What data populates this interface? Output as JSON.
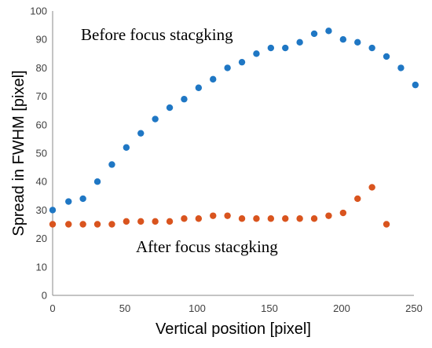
{
  "chart_data": {
    "type": "scatter",
    "xlabel": "Vertical position [pixel]",
    "ylabel": "Spread in FWHM [pixel]",
    "xlim": [
      0,
      250
    ],
    "ylim": [
      0,
      100
    ],
    "xticks": [
      "0",
      "50",
      "100",
      "150",
      "200",
      "250"
    ],
    "yticks": [
      "0",
      "10",
      "20",
      "30",
      "40",
      "50",
      "60",
      "70",
      "80",
      "90",
      "100"
    ],
    "grid": false,
    "annotations": [
      {
        "text": "Before focus stacgking"
      },
      {
        "text": "After focus stacgking"
      }
    ],
    "series": [
      {
        "color": "#1f77c4",
        "points": [
          [
            0,
            30
          ],
          [
            11,
            33
          ],
          [
            21,
            34
          ],
          [
            31,
            40
          ],
          [
            41,
            46
          ],
          [
            51,
            52
          ],
          [
            61,
            57
          ],
          [
            71,
            62
          ],
          [
            81,
            66
          ],
          [
            91,
            69
          ],
          [
            101,
            73
          ],
          [
            111,
            76
          ],
          [
            121,
            80
          ],
          [
            131,
            82
          ],
          [
            141,
            85
          ],
          [
            151,
            87
          ],
          [
            161,
            87
          ],
          [
            171,
            89
          ],
          [
            181,
            92
          ],
          [
            191,
            93
          ],
          [
            201,
            90
          ],
          [
            211,
            89
          ],
          [
            221,
            87
          ],
          [
            231,
            84
          ],
          [
            241,
            80
          ],
          [
            251,
            74
          ]
        ]
      },
      {
        "color": "#d9541e",
        "points": [
          [
            0,
            25
          ],
          [
            11,
            25
          ],
          [
            21,
            25
          ],
          [
            31,
            25
          ],
          [
            41,
            25
          ],
          [
            51,
            26
          ],
          [
            61,
            26
          ],
          [
            71,
            26
          ],
          [
            81,
            26
          ],
          [
            91,
            27
          ],
          [
            101,
            27
          ],
          [
            111,
            28
          ],
          [
            121,
            28
          ],
          [
            131,
            27
          ],
          [
            141,
            27
          ],
          [
            151,
            27
          ],
          [
            161,
            27
          ],
          [
            171,
            27
          ],
          [
            181,
            27
          ],
          [
            191,
            28
          ],
          [
            201,
            29
          ],
          [
            211,
            34
          ],
          [
            221,
            38
          ],
          [
            231,
            25
          ]
        ]
      }
    ]
  }
}
